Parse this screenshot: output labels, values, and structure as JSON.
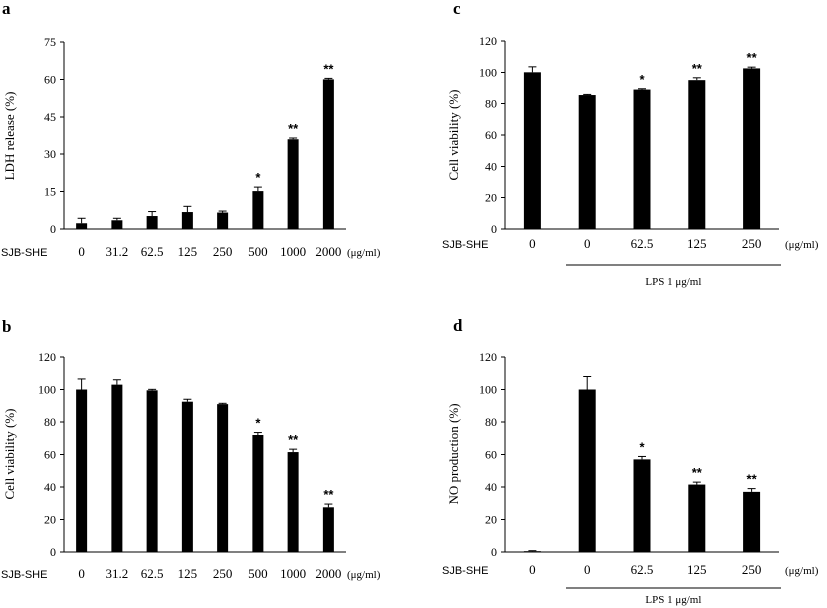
{
  "chart_data": [
    {
      "panel": "a",
      "type": "bar",
      "ylabel": "LDH release (%)",
      "ylim": [
        0,
        75
      ],
      "yticks": [
        0,
        15,
        30,
        45,
        60,
        75
      ],
      "row_label": "SJB-SHE",
      "unit": "(μg/ml)",
      "categories": [
        "0",
        "31.2",
        "62.5",
        "125",
        "250",
        "500",
        "1000",
        "2000"
      ],
      "values": [
        2.3,
        3.5,
        5.2,
        6.8,
        6.6,
        15.2,
        36.0,
        60.0
      ],
      "errors": [
        2.0,
        0.8,
        1.8,
        2.3,
        0.6,
        1.6,
        0.5,
        0.4
      ],
      "significance": [
        "",
        "",
        "",
        "",
        "",
        "*",
        "**",
        "**"
      ],
      "group_label": ""
    },
    {
      "panel": "b",
      "type": "bar",
      "ylabel": "Cell viability (%)",
      "ylim": [
        0,
        120
      ],
      "yticks": [
        0,
        20,
        40,
        60,
        80,
        100,
        120
      ],
      "row_label": "SJB-SHE",
      "unit": "(μg/ml)",
      "categories": [
        "0",
        "31.2",
        "62.5",
        "125",
        "250",
        "500",
        "1000",
        "2000"
      ],
      "values": [
        100,
        103,
        99.5,
        92.5,
        91,
        72,
        61.5,
        27.5
      ],
      "errors": [
        6.5,
        3.0,
        0.6,
        1.5,
        0.5,
        1.5,
        1.8,
        2.0
      ],
      "significance": [
        "",
        "",
        "",
        "",
        "",
        "*",
        "**",
        "**"
      ],
      "group_label": ""
    },
    {
      "panel": "c",
      "type": "bar",
      "ylabel": "Cell viability (%)",
      "ylim": [
        0,
        120
      ],
      "yticks": [
        0,
        20,
        40,
        60,
        80,
        100,
        120
      ],
      "row_label": "SJB-SHE",
      "unit": "(μg/ml)",
      "categories": [
        "0",
        "0",
        "62.5",
        "125",
        "250"
      ],
      "values": [
        100,
        85.5,
        89,
        95,
        102.5
      ],
      "errors": [
        3.5,
        0.4,
        0.5,
        1.5,
        0.8
      ],
      "significance": [
        "",
        "",
        "*",
        "**",
        "**"
      ],
      "group_label": "LPS 1 μg/ml"
    },
    {
      "panel": "d",
      "type": "bar",
      "ylabel": "NO production (%)",
      "ylim": [
        0,
        120
      ],
      "yticks": [
        0,
        20,
        40,
        60,
        80,
        100,
        120
      ],
      "row_label": "SJB-SHE",
      "unit": "(μg/ml)",
      "categories": [
        "0",
        "0",
        "62.5",
        "125",
        "250"
      ],
      "values": [
        0.5,
        100,
        57,
        41.5,
        37
      ],
      "errors": [
        0.3,
        8.0,
        1.8,
        1.5,
        2.0
      ],
      "significance": [
        "",
        "",
        "*",
        "**",
        "**"
      ],
      "group_label": "LPS 1 μg/ml"
    }
  ]
}
